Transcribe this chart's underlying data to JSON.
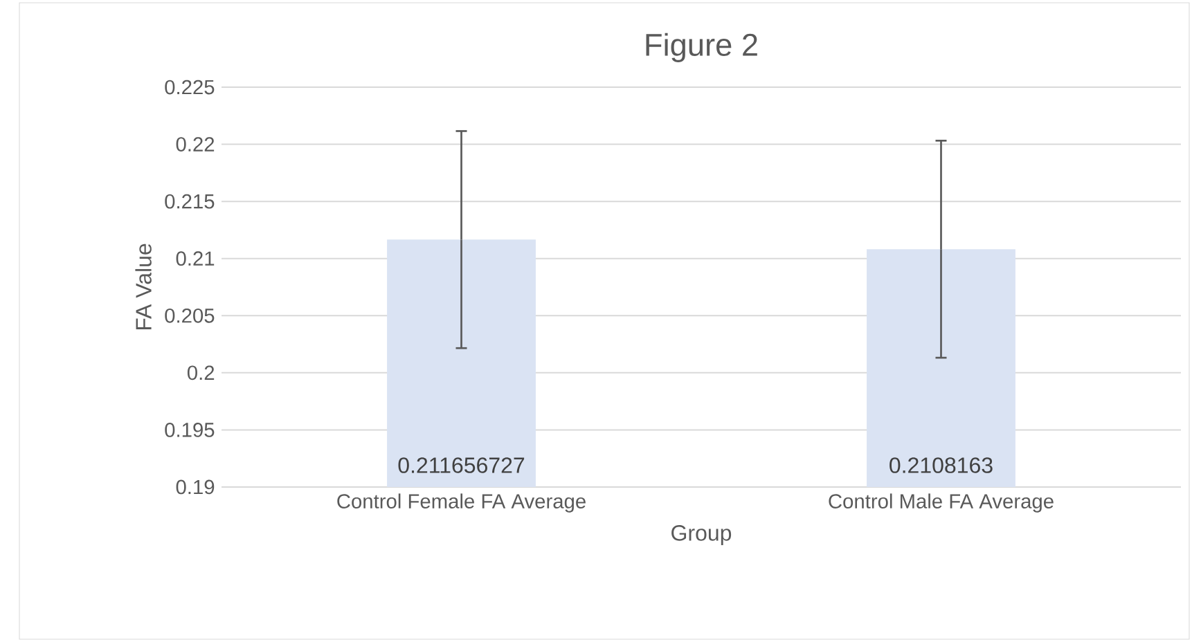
{
  "chart_data": {
    "type": "bar",
    "title": "Figure 2",
    "xlabel": "Group",
    "ylabel": "FA Value",
    "categories": [
      "Control Female FA Average",
      "Control Male FA Average"
    ],
    "values": [
      0.211656727,
      0.2108163
    ],
    "errors": [
      0.0095,
      0.0095
    ],
    "color": "#dae3f3",
    "data_labels": true,
    "ylim": [
      0.19,
      0.225
    ],
    "yticks": [
      0.19,
      0.195,
      0.2,
      0.205,
      0.21,
      0.215,
      0.22,
      0.225
    ],
    "grid": "y"
  }
}
